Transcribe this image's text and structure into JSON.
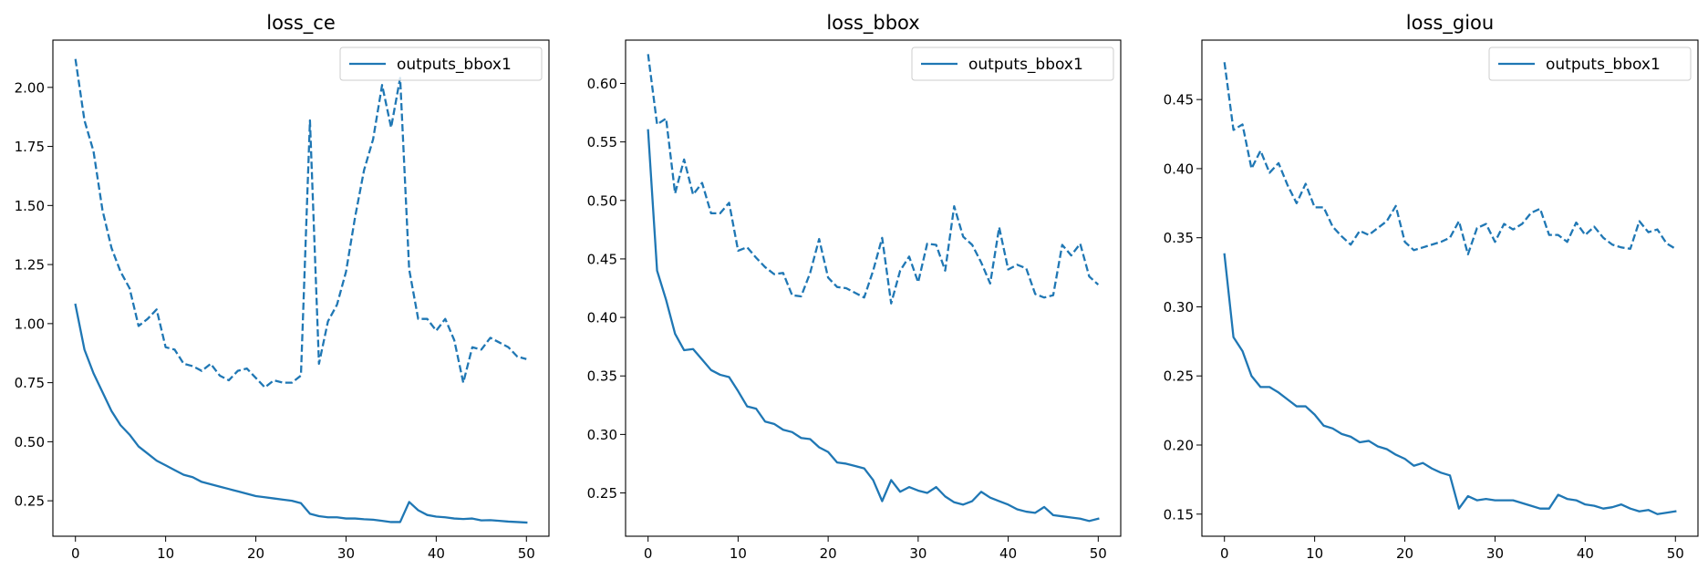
{
  "chart_data": [
    {
      "type": "line",
      "title": "loss_ce",
      "xlabel": "",
      "ylabel": "",
      "xlim": [
        -2.5,
        52.5
      ],
      "ylim": [
        0.1,
        2.2
      ],
      "xticks": [
        0,
        10,
        20,
        30,
        40,
        50
      ],
      "yticks": [
        0.25,
        0.5,
        0.75,
        1.0,
        1.25,
        1.5,
        1.75,
        2.0
      ],
      "grid": false,
      "legend": {
        "position": "top-right",
        "entries": [
          "outputs_bbox1"
        ]
      },
      "series": [
        {
          "name": "outputs_bbox1",
          "style": "solid",
          "color": "#1f77b4",
          "values": [
            1.08,
            0.89,
            0.79,
            0.71,
            0.63,
            0.57,
            0.53,
            0.48,
            0.45,
            0.42,
            0.4,
            0.38,
            0.36,
            0.35,
            0.33,
            0.32,
            0.31,
            0.3,
            0.29,
            0.28,
            0.27,
            0.265,
            0.26,
            0.255,
            0.25,
            0.24,
            0.195,
            0.185,
            0.18,
            0.18,
            0.175,
            0.175,
            0.172,
            0.17,
            0.165,
            0.16,
            0.16,
            0.245,
            0.21,
            0.19,
            0.183,
            0.18,
            0.175,
            0.173,
            0.175,
            0.167,
            0.168,
            0.165,
            0.162,
            0.16,
            0.158
          ]
        },
        {
          "style": "dashed",
          "color": "#1f77b4",
          "values": [
            2.12,
            1.86,
            1.73,
            1.48,
            1.32,
            1.22,
            1.15,
            0.99,
            1.02,
            1.06,
            0.9,
            0.89,
            0.83,
            0.82,
            0.8,
            0.83,
            0.78,
            0.76,
            0.8,
            0.81,
            0.77,
            0.73,
            0.76,
            0.75,
            0.75,
            0.78,
            1.86,
            0.83,
            1.01,
            1.08,
            1.22,
            1.45,
            1.65,
            1.78,
            2.01,
            1.83,
            2.04,
            1.23,
            1.02,
            1.02,
            0.97,
            1.02,
            0.93,
            0.75,
            0.9,
            0.89,
            0.94,
            0.92,
            0.9,
            0.86,
            0.85
          ]
        }
      ]
    },
    {
      "type": "line",
      "title": "loss_bbox",
      "xlabel": "",
      "ylabel": "",
      "xlim": [
        -2.5,
        52.5
      ],
      "ylim": [
        0.213,
        0.637
      ],
      "xticks": [
        0,
        10,
        20,
        30,
        40,
        50
      ],
      "yticks": [
        0.25,
        0.3,
        0.35,
        0.4,
        0.45,
        0.5,
        0.55,
        0.6
      ],
      "grid": false,
      "legend": {
        "position": "top-right",
        "entries": [
          "outputs_bbox1"
        ]
      },
      "series": [
        {
          "name": "outputs_bbox1",
          "style": "solid",
          "color": "#1f77b4",
          "values": [
            0.56,
            0.44,
            0.415,
            0.386,
            0.372,
            0.373,
            0.364,
            0.355,
            0.351,
            0.349,
            0.337,
            0.324,
            0.322,
            0.311,
            0.309,
            0.304,
            0.302,
            0.297,
            0.296,
            0.289,
            0.285,
            0.276,
            0.275,
            0.273,
            0.271,
            0.261,
            0.243,
            0.261,
            0.251,
            0.255,
            0.252,
            0.25,
            0.255,
            0.247,
            0.242,
            0.24,
            0.243,
            0.251,
            0.246,
            0.243,
            0.24,
            0.236,
            0.234,
            0.233,
            0.238,
            0.231,
            0.23,
            0.229,
            0.228,
            0.226,
            0.228
          ]
        },
        {
          "style": "dashed",
          "color": "#1f77b4",
          "values": [
            0.625,
            0.565,
            0.57,
            0.506,
            0.535,
            0.505,
            0.515,
            0.489,
            0.489,
            0.498,
            0.457,
            0.46,
            0.451,
            0.443,
            0.437,
            0.438,
            0.419,
            0.418,
            0.438,
            0.467,
            0.434,
            0.426,
            0.425,
            0.421,
            0.417,
            0.44,
            0.468,
            0.412,
            0.44,
            0.452,
            0.43,
            0.463,
            0.462,
            0.44,
            0.495,
            0.469,
            0.462,
            0.447,
            0.429,
            0.477,
            0.441,
            0.445,
            0.442,
            0.42,
            0.417,
            0.419,
            0.462,
            0.453,
            0.463,
            0.435,
            0.428
          ]
        }
      ]
    },
    {
      "type": "line",
      "title": "loss_giou",
      "xlabel": "",
      "ylabel": "",
      "xlim": [
        -2.5,
        52.5
      ],
      "ylim": [
        0.134,
        0.493
      ],
      "xticks": [
        0,
        10,
        20,
        30,
        40,
        50
      ],
      "yticks": [
        0.15,
        0.2,
        0.25,
        0.3,
        0.35,
        0.4,
        0.45
      ],
      "grid": false,
      "legend": {
        "position": "top-right",
        "entries": [
          "outputs_bbox1"
        ]
      },
      "series": [
        {
          "name": "outputs_bbox1",
          "style": "solid",
          "color": "#1f77b4",
          "values": [
            0.338,
            0.278,
            0.268,
            0.25,
            0.242,
            0.242,
            0.238,
            0.233,
            0.228,
            0.228,
            0.222,
            0.214,
            0.212,
            0.208,
            0.206,
            0.202,
            0.203,
            0.199,
            0.197,
            0.193,
            0.19,
            0.185,
            0.187,
            0.183,
            0.18,
            0.178,
            0.154,
            0.163,
            0.16,
            0.161,
            0.16,
            0.16,
            0.16,
            0.158,
            0.156,
            0.154,
            0.154,
            0.164,
            0.161,
            0.16,
            0.157,
            0.156,
            0.154,
            0.155,
            0.157,
            0.154,
            0.152,
            0.153,
            0.15,
            0.151,
            0.152
          ]
        },
        {
          "style": "dashed",
          "color": "#1f77b4",
          "values": [
            0.477,
            0.428,
            0.432,
            0.4,
            0.413,
            0.397,
            0.404,
            0.388,
            0.375,
            0.389,
            0.372,
            0.372,
            0.358,
            0.351,
            0.345,
            0.355,
            0.352,
            0.357,
            0.362,
            0.373,
            0.347,
            0.341,
            0.343,
            0.345,
            0.347,
            0.35,
            0.362,
            0.338,
            0.357,
            0.36,
            0.347,
            0.36,
            0.356,
            0.36,
            0.368,
            0.371,
            0.352,
            0.352,
            0.347,
            0.361,
            0.352,
            0.358,
            0.35,
            0.345,
            0.343,
            0.342,
            0.362,
            0.354,
            0.356,
            0.346,
            0.342
          ]
        }
      ]
    }
  ]
}
